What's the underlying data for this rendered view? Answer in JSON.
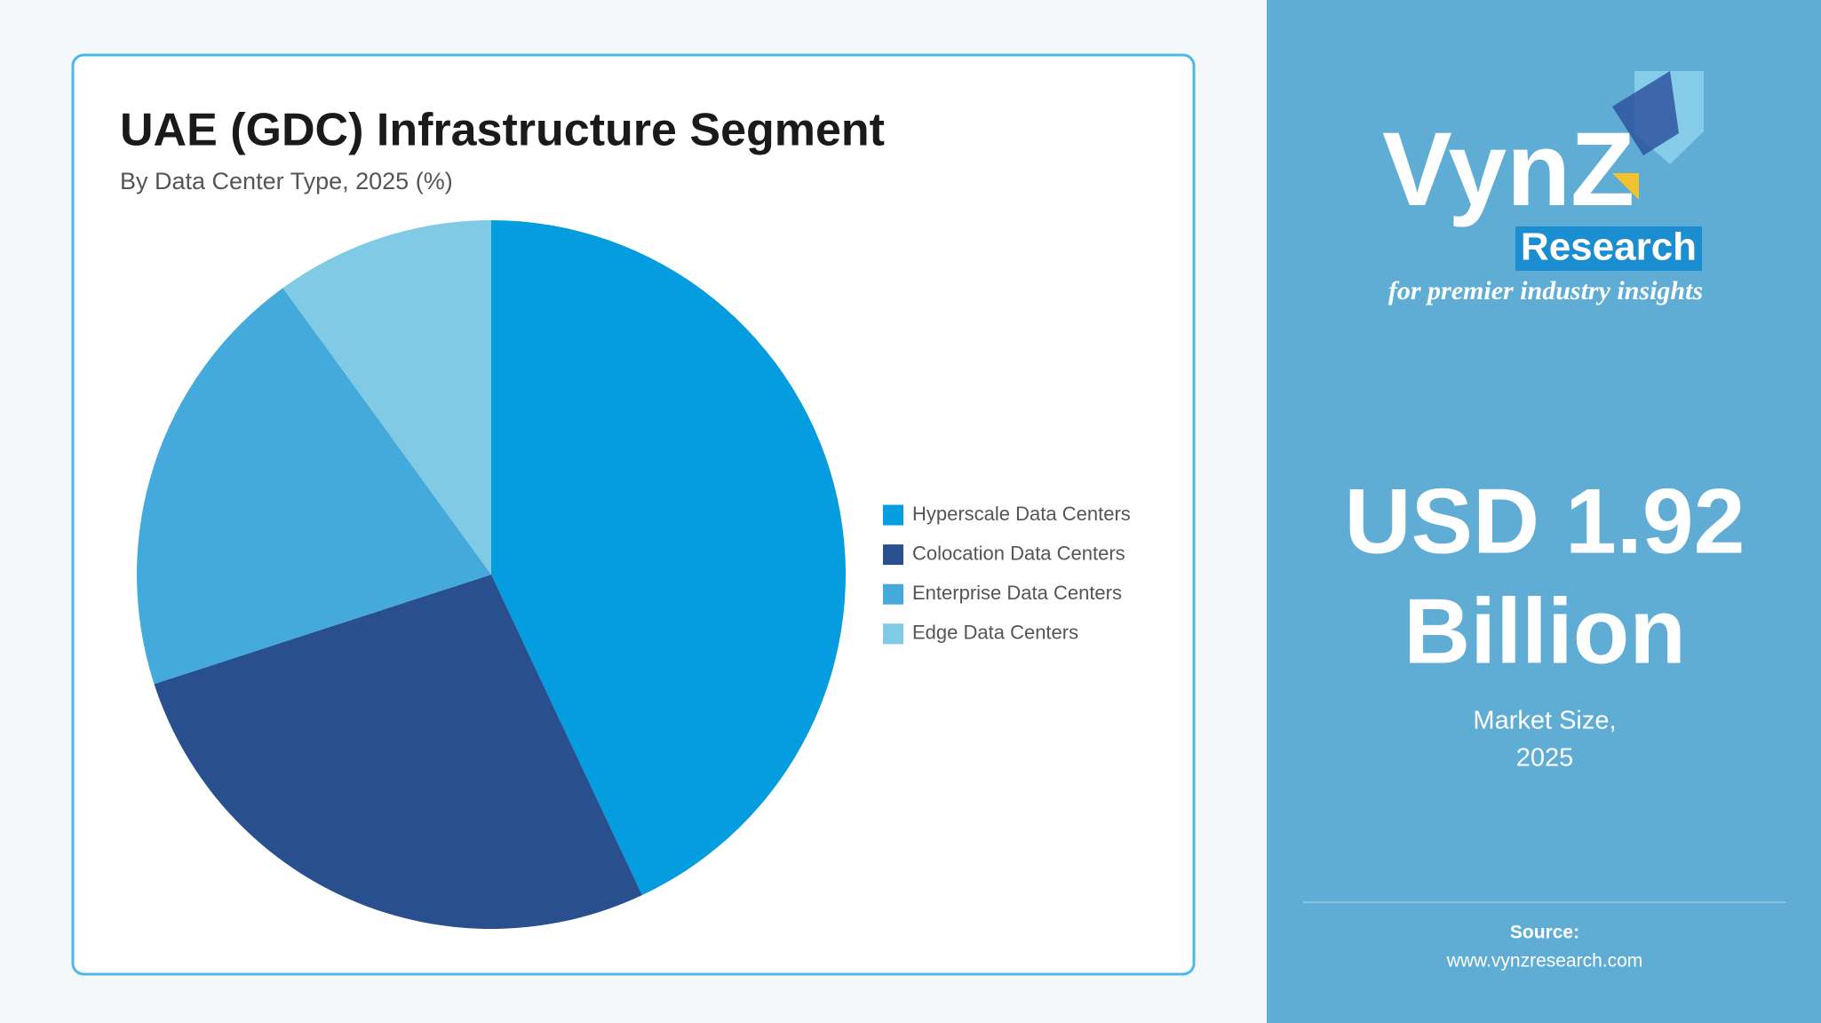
{
  "chart_data": {
    "type": "pie",
    "title": "UAE (GDC) Infrastructure Segment",
    "subtitle": "By Data Center Type, 2025 (%)",
    "categories": [
      "Hyperscale Data Centers",
      "Colocation Data Centers",
      "Enterprise Data Centers",
      "Edge Data Centers"
    ],
    "values": [
      43,
      27,
      20,
      10
    ],
    "colors": [
      "#039de0",
      "#294f8f",
      "#44aadb",
      "#80cae6"
    ],
    "legend": "right"
  },
  "logo": {
    "name": "VynZ",
    "sub": "Research",
    "tagline": "for premier industry insights"
  },
  "market": {
    "line1": "USD 1.92",
    "line2": "Billion",
    "caption1": "Market Size,",
    "caption2": "2025"
  },
  "source": {
    "label": "Source:",
    "url": "www.vynzresearch.com"
  }
}
